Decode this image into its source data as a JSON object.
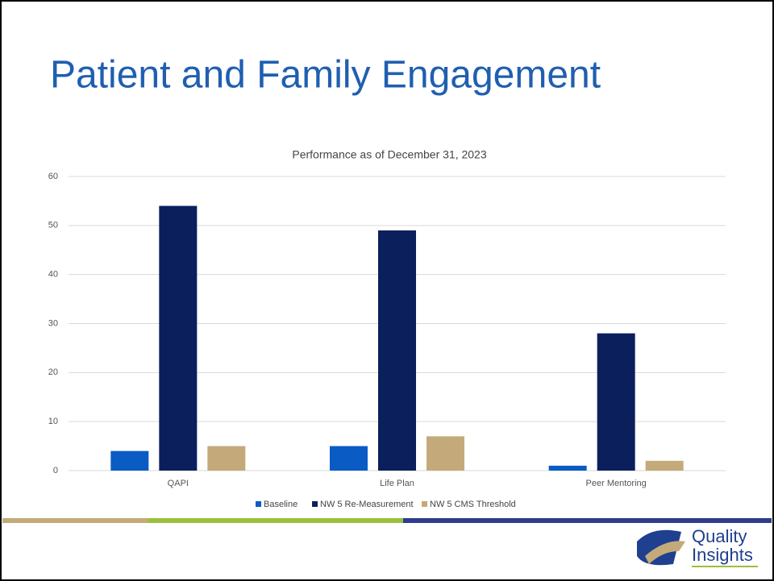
{
  "slide_title": "Patient and Family Engagement",
  "chart_data": {
    "type": "bar",
    "title": "Performance as of December 31, 2023",
    "categories": [
      "QAPI",
      "Life Plan",
      "Peer Mentoring"
    ],
    "series": [
      {
        "name": "Baseline",
        "color": "#0a5bc4",
        "values": [
          4,
          5,
          1
        ]
      },
      {
        "name": "NW 5 Re-Measurement",
        "color": "#0b1f5c",
        "values": [
          54,
          49,
          28
        ]
      },
      {
        "name": "NW 5 CMS Threshold",
        "color": "#c4aa7a",
        "values": [
          5,
          7,
          2
        ]
      }
    ],
    "ylim": [
      0,
      60
    ],
    "yticks": [
      0,
      10,
      20,
      30,
      40,
      50,
      60
    ],
    "grid": true,
    "legend": "bottom"
  },
  "logo": {
    "line1": "Quality",
    "line2": "Insights"
  }
}
